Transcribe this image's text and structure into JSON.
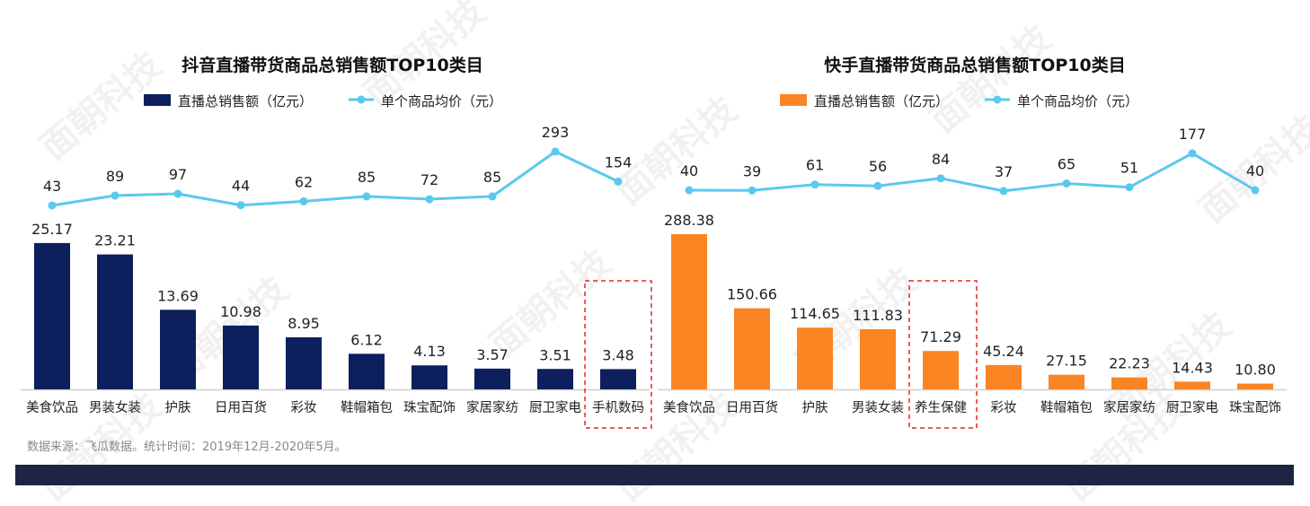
{
  "watermark": "面朝科技",
  "footer": {
    "source": "数据来源：飞瓜数据。统计时间：2019年12月-2020年5月。",
    "band_color": "#1f2444"
  },
  "chart_data": [
    {
      "type": "bar+line",
      "title": "抖音直播带货商品总销售额TOP10类目",
      "legend_position": "top",
      "grid": false,
      "categories": [
        "美食饮品",
        "男装女装",
        "护肤",
        "日用百货",
        "彩妆",
        "鞋帽箱包",
        "珠宝配饰",
        "家居家纺",
        "厨卫家电",
        "手机数码"
      ],
      "series": [
        {
          "name": "直播总销售额（亿元）",
          "type": "bar",
          "color": "#0d1f5c",
          "values": [
            25.17,
            23.21,
            13.69,
            10.98,
            8.95,
            6.12,
            4.13,
            3.57,
            3.51,
            3.48
          ],
          "labels": [
            "25.17",
            "23.21",
            "13.69",
            "10.98",
            "8.95",
            "6.12",
            "4.13",
            "3.57",
            "3.51",
            "3.48"
          ]
        },
        {
          "name": "单个商品均价（元）",
          "type": "line",
          "color": "#5bc8ee",
          "values": [
            43,
            89,
            97,
            44,
            62,
            85,
            72,
            85,
            293,
            154
          ],
          "labels": [
            "43",
            "89",
            "97",
            "44",
            "62",
            "85",
            "72",
            "85",
            "293",
            "154"
          ]
        }
      ],
      "highlight_category": "手机数码",
      "highlight_color": "#e0262b"
    },
    {
      "type": "bar+line",
      "title": "快手直播带货商品总销售额TOP10类目",
      "legend_position": "top",
      "grid": false,
      "categories": [
        "美食饮品",
        "日用百货",
        "护肤",
        "男装女装",
        "养生保健",
        "彩妆",
        "鞋帽箱包",
        "家居家纺",
        "厨卫家电",
        "珠宝配饰"
      ],
      "series": [
        {
          "name": "直播总销售额（亿元）",
          "type": "bar",
          "color": "#fb8423",
          "values": [
            288.38,
            150.66,
            114.65,
            111.83,
            71.29,
            45.24,
            27.15,
            22.23,
            14.43,
            10.8
          ],
          "labels": [
            "288.38",
            "150.66",
            "114.65",
            "111.83",
            "71.29",
            "45.24",
            "27.15",
            "22.23",
            "14.43",
            "10.80"
          ]
        },
        {
          "name": "单个商品均价（元）",
          "type": "line",
          "color": "#5bc8ee",
          "values": [
            40,
            39,
            61,
            56,
            84,
            37,
            65,
            51,
            177,
            40
          ],
          "labels": [
            "40",
            "39",
            "61",
            "56",
            "84",
            "37",
            "65",
            "51",
            "177",
            "40"
          ]
        }
      ],
      "highlight_category": "养生保健",
      "highlight_color": "#e0262b"
    }
  ]
}
